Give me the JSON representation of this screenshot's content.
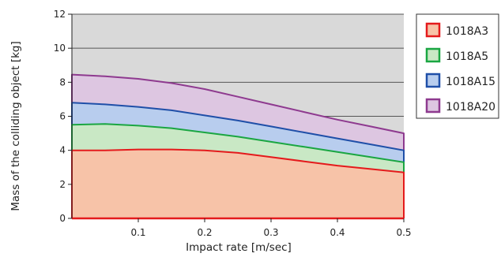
{
  "chart_data": {
    "type": "area",
    "title": "",
    "xlabel": "Impact rate [m/sec]",
    "ylabel": "Mass of the colliding object [kg]",
    "xlim": [
      0,
      0.5
    ],
    "ylim": [
      0,
      12
    ],
    "xticks": [
      "0.1",
      "0.2",
      "0.3",
      "0.4",
      "0.5"
    ],
    "yticks": [
      "0",
      "2",
      "4",
      "6",
      "8",
      "10",
      "12"
    ],
    "grid": "horizontal",
    "legend_position": "right",
    "plot_background": "#d9d9d9",
    "series": [
      {
        "name": "1018A3",
        "line_color": "#e41a1c",
        "fill_color": "#f7c3a8",
        "x": [
          0,
          0.05,
          0.1,
          0.15,
          0.2,
          0.25,
          0.3,
          0.35,
          0.4,
          0.45,
          0.5
        ],
        "y": [
          4.0,
          4.0,
          4.05,
          4.05,
          4.0,
          3.85,
          3.6,
          3.35,
          3.1,
          2.9,
          2.7
        ]
      },
      {
        "name": "1018A5",
        "line_color": "#1aa642",
        "fill_color": "#c9e8c5",
        "x": [
          0,
          0.05,
          0.1,
          0.15,
          0.2,
          0.25,
          0.3,
          0.35,
          0.4,
          0.45,
          0.5
        ],
        "y": [
          5.5,
          5.55,
          5.45,
          5.3,
          5.05,
          4.8,
          4.5,
          4.2,
          3.9,
          3.6,
          3.3
        ]
      },
      {
        "name": "1018A15",
        "line_color": "#1f4fa8",
        "fill_color": "#b8cdee",
        "x": [
          0,
          0.05,
          0.1,
          0.15,
          0.2,
          0.25,
          0.3,
          0.35,
          0.4,
          0.45,
          0.5
        ],
        "y": [
          6.8,
          6.7,
          6.55,
          6.35,
          6.05,
          5.75,
          5.4,
          5.05,
          4.7,
          4.35,
          4.0
        ]
      },
      {
        "name": "1018A20",
        "line_color": "#8e3a8f",
        "fill_color": "#ddc6e1",
        "x": [
          0,
          0.05,
          0.1,
          0.15,
          0.2,
          0.25,
          0.3,
          0.35,
          0.4,
          0.45,
          0.5
        ],
        "y": [
          8.45,
          8.35,
          8.2,
          7.95,
          7.6,
          7.15,
          6.7,
          6.25,
          5.8,
          5.4,
          5.0
        ]
      }
    ]
  }
}
